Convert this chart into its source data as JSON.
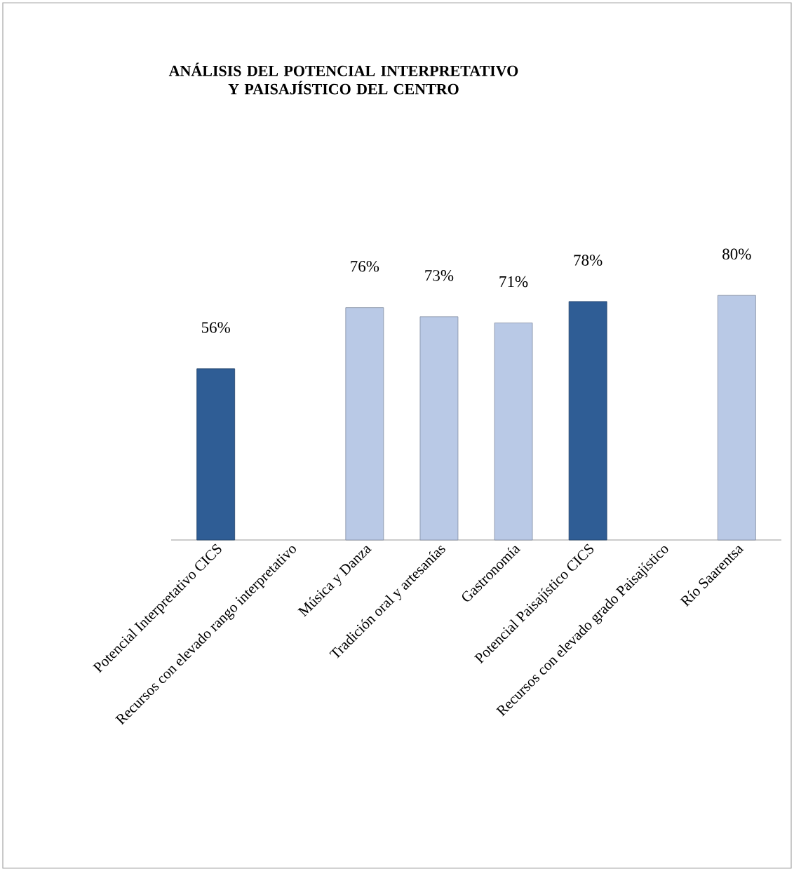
{
  "chart_data": {
    "type": "bar",
    "title": "ANÁLISIS DEL POTENCIAL INTERPRETATIVO Y PAISAJÍSTICO DEL CENTRO",
    "categories": [
      "Potencial Interpretativo CICS",
      "Recursos con elevado rango interpretativo",
      "Música y Danza",
      "Tradición oral y artesanías",
      "Gastronomía",
      "Potencial Paisajístico CICS",
      "Recursos con elevado grado Paisajístico",
      "Río Saarentsa"
    ],
    "values": [
      56,
      null,
      76,
      73,
      71,
      78,
      null,
      80
    ],
    "value_labels": [
      "56%",
      null,
      "76%",
      "73%",
      "71%",
      "78%",
      null,
      "80%"
    ],
    "colors": [
      "#2f5d95",
      "#b9c9e6",
      "#b9c9e6",
      "#b9c9e6",
      "#b9c9e6",
      "#2f5d95",
      "#b9c9e6",
      "#b9c9e6"
    ]
  }
}
